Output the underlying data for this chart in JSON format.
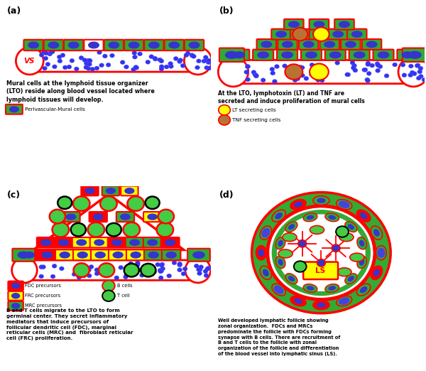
{
  "panel_a_text": "Mural cells at the lymphoid tissue organizer\n(LTO) reside along blood vessel located where\nlymphoid tissues will develop.",
  "panel_a_legend": "Perivascular-Mural cells",
  "panel_b_text": "At the LTO, lymphotoxin (LT) and TNF are\nsecreted and induce proliferation of mural cells",
  "panel_b_legend1": "LT secreting cells",
  "panel_b_legend2": "TNF secreting cells",
  "panel_c_text": "B and T cells migrate to the LTO to form\ngerminal center. They secret inflammatory\nmediators that induce precursors of\nfollicular dendritic cell (FDC), marginal\nreticular cells (MRC) and  fibroblast reticular\ncell (FRC) proliferation.",
  "panel_d_text": "Well developed lymphatic follicle showing\nzonal organization.  FDCs and MRCs\npredominate the follicle with FDCs forming\nsynapse with B cells. There are recruitment of\nB and T cells to the follicle with zonal\norganization of the follicle and differentiation\nof the blood vessel into lymphatic sinus (LS).",
  "green_cell": "#33aa33",
  "blue_nuc": "#3535cc",
  "red": "#ff0000",
  "yellow": "#ffff00",
  "tnf_brown": "#b87333",
  "dot_blue": "#3333ee",
  "black": "#000000",
  "white": "#ffffff"
}
